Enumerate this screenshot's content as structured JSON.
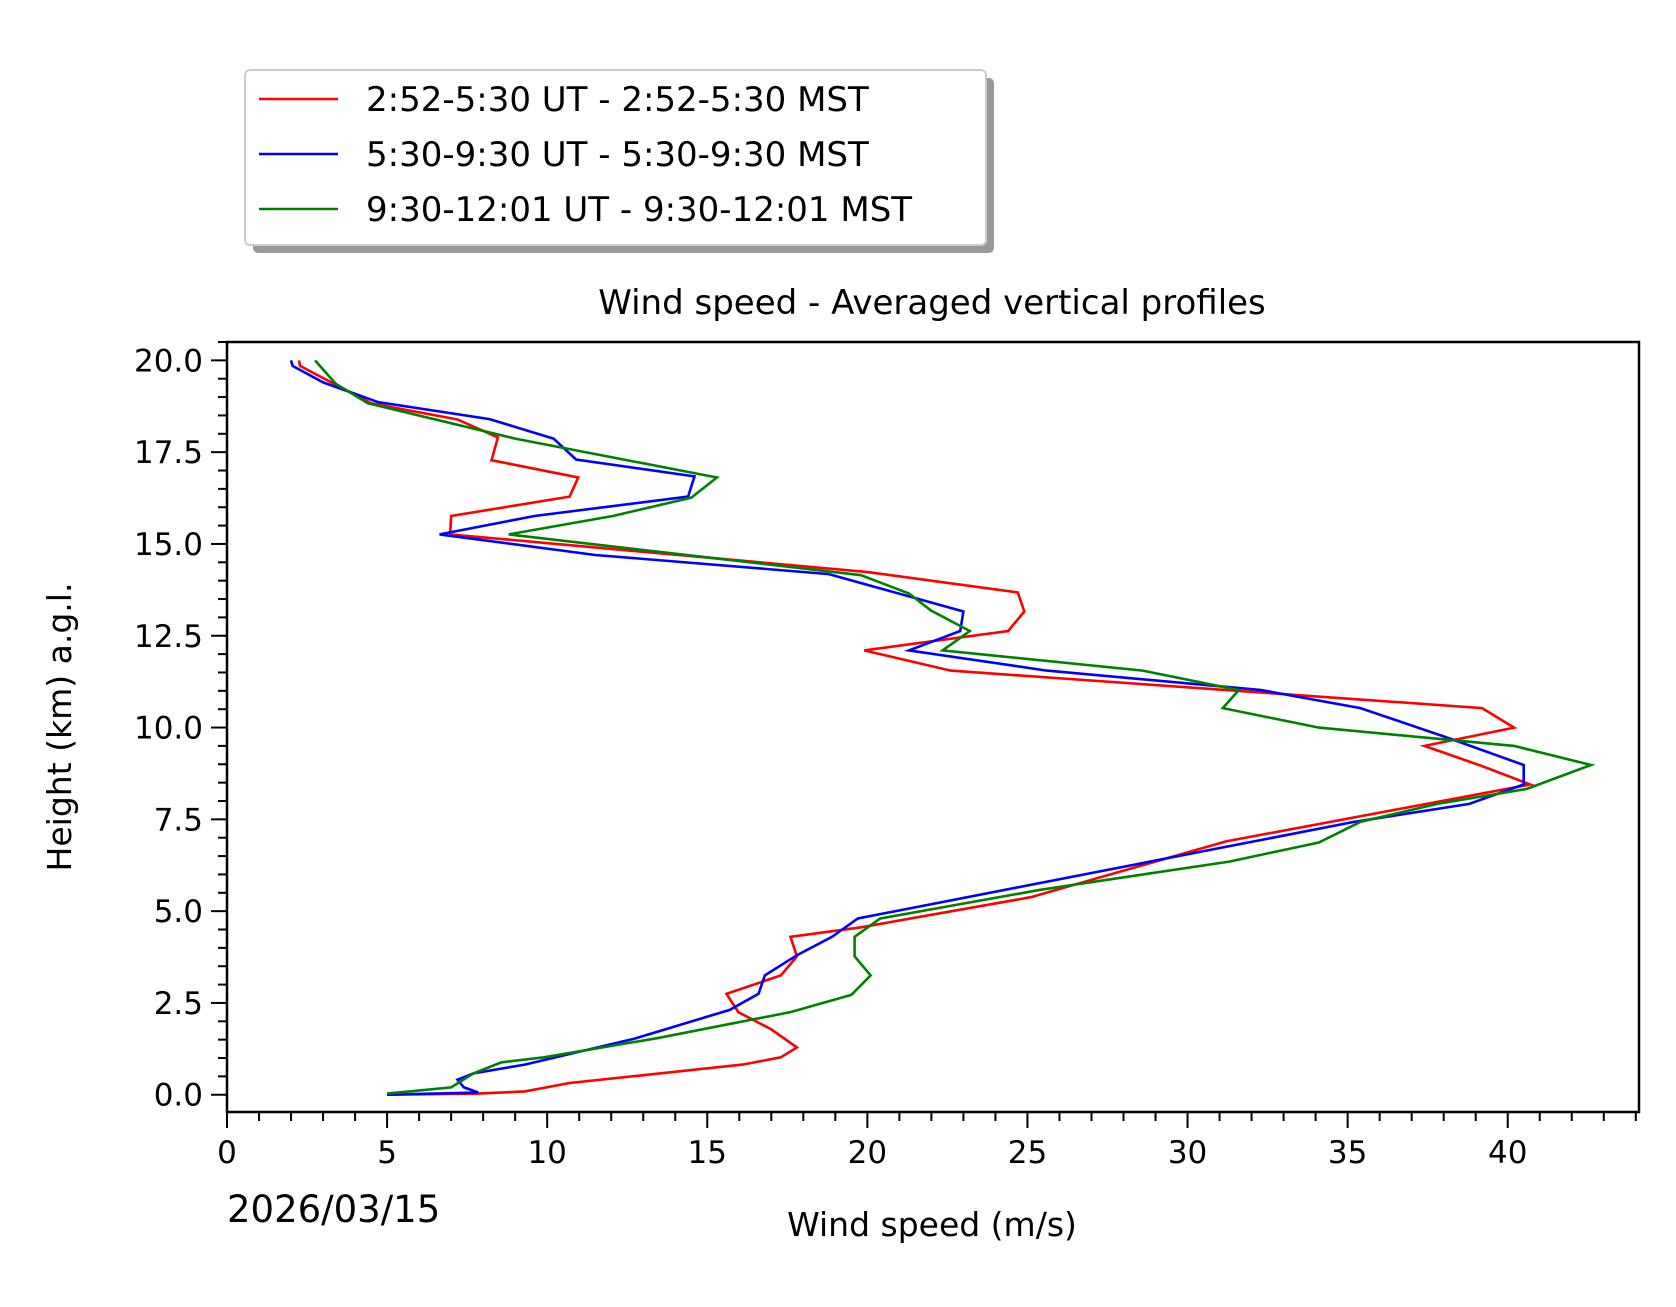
{
  "chart_data": {
    "type": "line",
    "title": "Wind speed - Averaged vertical profiles",
    "xlabel": "Wind speed (m/s)",
    "ylabel": "Height (km) a.g.l.",
    "date_label": "2026/03/15",
    "xlim": [
      0,
      44.1
    ],
    "ylim": [
      -0.47,
      20.5
    ],
    "xticks": [
      0,
      5,
      10,
      15,
      20,
      25,
      30,
      35,
      40
    ],
    "xtick_labels": [
      "0",
      "5",
      "10",
      "15",
      "20",
      "25",
      "30",
      "35",
      "40"
    ],
    "yticks": [
      0,
      2.5,
      5,
      7.5,
      10,
      12.5,
      15,
      17.5,
      20
    ],
    "ytick_labels": [
      "0.0",
      "2.5",
      "5.0",
      "7.5",
      "10.0",
      "12.5",
      "15.0",
      "17.5",
      "20.0"
    ],
    "grid": false,
    "legend_position": "above-left",
    "series": [
      {
        "name": "2:52-5:30 UT - 2:52-5:30 MST",
        "color": "#ff0000",
        "points": [
          [
            2.25,
            20.0
          ],
          [
            2.28,
            19.85
          ],
          [
            4.5,
            18.83
          ],
          [
            7.2,
            18.39
          ],
          [
            8.46,
            17.9
          ],
          [
            8.26,
            17.28
          ],
          [
            10.97,
            16.81
          ],
          [
            10.7,
            16.29
          ],
          [
            7.0,
            15.76
          ],
          [
            6.97,
            15.26
          ],
          [
            19.97,
            14.24
          ],
          [
            24.7,
            13.68
          ],
          [
            24.9,
            13.16
          ],
          [
            24.4,
            12.63
          ],
          [
            19.9,
            12.1
          ],
          [
            22.6,
            11.55
          ],
          [
            39.2,
            10.53
          ],
          [
            40.2,
            10.0
          ],
          [
            37.4,
            9.5
          ],
          [
            39.2,
            8.95
          ],
          [
            40.7,
            8.45
          ],
          [
            31.2,
            6.9
          ],
          [
            25.1,
            5.38
          ],
          [
            19.8,
            4.56
          ],
          [
            17.6,
            4.3
          ],
          [
            17.8,
            3.77
          ],
          [
            17.3,
            3.25
          ],
          [
            15.6,
            2.75
          ],
          [
            15.97,
            2.25
          ],
          [
            17.0,
            1.78
          ],
          [
            17.8,
            1.29
          ],
          [
            17.3,
            1.02
          ],
          [
            16.1,
            0.82
          ],
          [
            10.7,
            0.32
          ],
          [
            9.3,
            0.09
          ],
          [
            7.85,
            0.03
          ],
          [
            5.0,
            0.0
          ]
        ]
      },
      {
        "name": "5:30-9:30 UT - 5:30-9:30 MST",
        "color": "#0000ff",
        "points": [
          [
            2.0,
            20.0
          ],
          [
            2.05,
            19.85
          ],
          [
            3.0,
            19.4
          ],
          [
            4.73,
            18.86
          ],
          [
            8.2,
            18.4
          ],
          [
            10.2,
            17.87
          ],
          [
            10.9,
            17.3
          ],
          [
            14.6,
            16.84
          ],
          [
            14.4,
            16.29
          ],
          [
            9.6,
            15.76
          ],
          [
            6.64,
            15.26
          ],
          [
            11.5,
            14.7
          ],
          [
            18.8,
            14.18
          ],
          [
            23.0,
            13.16
          ],
          [
            22.9,
            12.63
          ],
          [
            21.3,
            12.1
          ],
          [
            25.6,
            11.55
          ],
          [
            32.3,
            11.02
          ],
          [
            35.4,
            10.53
          ],
          [
            38.2,
            9.7
          ],
          [
            40.5,
            8.98
          ],
          [
            40.5,
            8.45
          ],
          [
            38.8,
            7.92
          ],
          [
            35.2,
            7.43
          ],
          [
            19.7,
            4.8
          ],
          [
            18.9,
            4.3
          ],
          [
            17.8,
            3.8
          ],
          [
            16.8,
            3.25
          ],
          [
            16.6,
            2.75
          ],
          [
            15.7,
            2.31
          ],
          [
            12.7,
            1.52
          ],
          [
            9.3,
            0.82
          ],
          [
            7.7,
            0.58
          ],
          [
            7.2,
            0.41
          ],
          [
            7.4,
            0.2
          ],
          [
            7.85,
            0.06
          ],
          [
            5.0,
            0.0
          ]
        ]
      },
      {
        "name": "9:30-12:01 UT - 9:30-12:01 MST",
        "color": "#008000",
        "points": [
          [
            2.75,
            20.0
          ],
          [
            3.4,
            19.36
          ],
          [
            4.4,
            18.83
          ],
          [
            9.0,
            17.87
          ],
          [
            15.3,
            16.81
          ],
          [
            14.5,
            16.26
          ],
          [
            12.05,
            15.76
          ],
          [
            8.8,
            15.26
          ],
          [
            19.8,
            14.15
          ],
          [
            21.3,
            13.65
          ],
          [
            21.98,
            13.19
          ],
          [
            23.2,
            12.63
          ],
          [
            22.35,
            12.1
          ],
          [
            28.6,
            11.55
          ],
          [
            31.6,
            11.02
          ],
          [
            31.1,
            10.53
          ],
          [
            34.1,
            10.0
          ],
          [
            40.2,
            9.5
          ],
          [
            42.6,
            8.98
          ],
          [
            40.6,
            8.33
          ],
          [
            37.8,
            7.92
          ],
          [
            35.4,
            7.43
          ],
          [
            34.1,
            6.87
          ],
          [
            31.3,
            6.35
          ],
          [
            25.4,
            5.58
          ],
          [
            20.4,
            4.8
          ],
          [
            19.6,
            4.3
          ],
          [
            19.6,
            3.77
          ],
          [
            20.1,
            3.25
          ],
          [
            19.5,
            2.72
          ],
          [
            17.6,
            2.25
          ],
          [
            13.5,
            1.55
          ],
          [
            9.9,
            1.02
          ],
          [
            8.56,
            0.88
          ],
          [
            7.7,
            0.58
          ],
          [
            7.0,
            0.2
          ],
          [
            5.0,
            0.03
          ]
        ]
      }
    ]
  }
}
